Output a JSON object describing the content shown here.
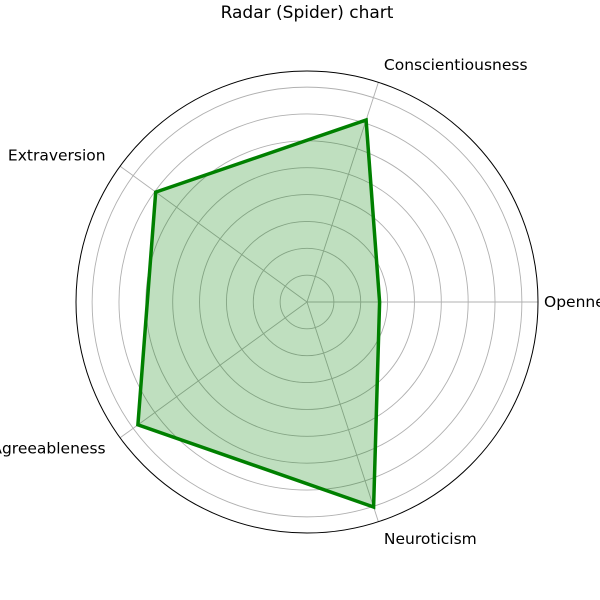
{
  "chart_data": {
    "type": "radar",
    "title": "Radar (Spider) chart",
    "categories": [
      "Openness",
      "Conscientiousness",
      "Extraversion",
      "Agreeableness",
      "Neuroticism"
    ],
    "series": [
      {
        "values": [
          0.33,
          0.87,
          0.85,
          0.95,
          0.98
        ],
        "color": "#008000"
      }
    ],
    "rlim": [
      0,
      1.05
    ],
    "rings": 8,
    "grid": true
  }
}
